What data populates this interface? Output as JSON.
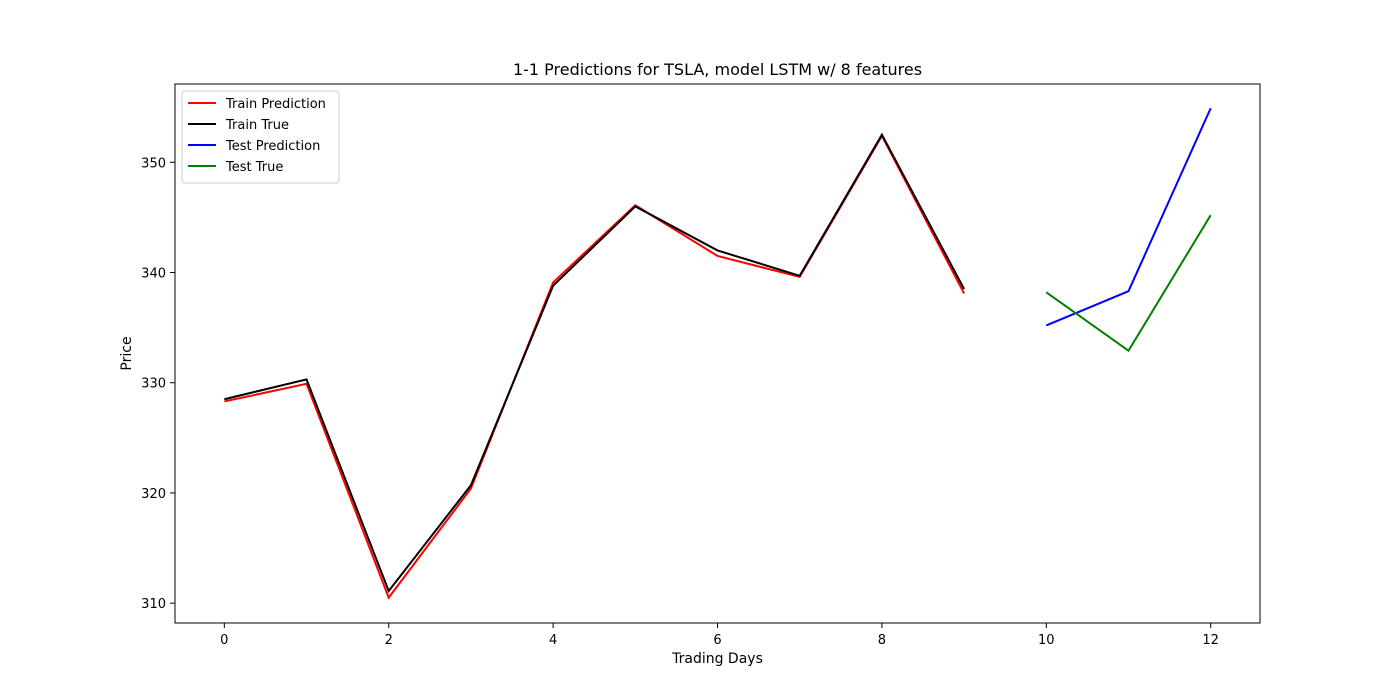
{
  "chart_data": {
    "type": "line",
    "title": "1-1 Predictions for TSLA, model LSTM w/ 8 features",
    "xlabel": "Trading Days",
    "ylabel": "Price",
    "xlim": [
      -0.6,
      12.6
    ],
    "ylim": [
      308.2,
      357.1
    ],
    "xticks": [
      0,
      2,
      4,
      6,
      8,
      10,
      12
    ],
    "yticks": [
      310,
      320,
      330,
      340,
      350
    ],
    "grid": false,
    "legend_position": "upper-left",
    "series": [
      {
        "name": "Train Prediction",
        "color": "#ff0000",
        "x": [
          0,
          1,
          2,
          3,
          4,
          5,
          6,
          7,
          8,
          9
        ],
        "y": [
          328.3,
          329.9,
          310.5,
          320.4,
          339.1,
          346.1,
          341.5,
          339.6,
          352.4,
          338.1
        ]
      },
      {
        "name": "Train True",
        "color": "#000000",
        "x": [
          0,
          1,
          2,
          3,
          4,
          5,
          6,
          7,
          8,
          9
        ],
        "y": [
          328.5,
          330.3,
          311.1,
          320.7,
          338.8,
          346.0,
          342.0,
          339.7,
          352.5,
          338.5
        ]
      },
      {
        "name": "Test Prediction",
        "color": "#0000ff",
        "x": [
          10,
          11,
          12
        ],
        "y": [
          335.2,
          338.3,
          354.9
        ]
      },
      {
        "name": "Test True",
        "color": "#008000",
        "x": [
          10,
          11,
          12
        ],
        "y": [
          338.2,
          332.9,
          345.2
        ]
      }
    ]
  }
}
